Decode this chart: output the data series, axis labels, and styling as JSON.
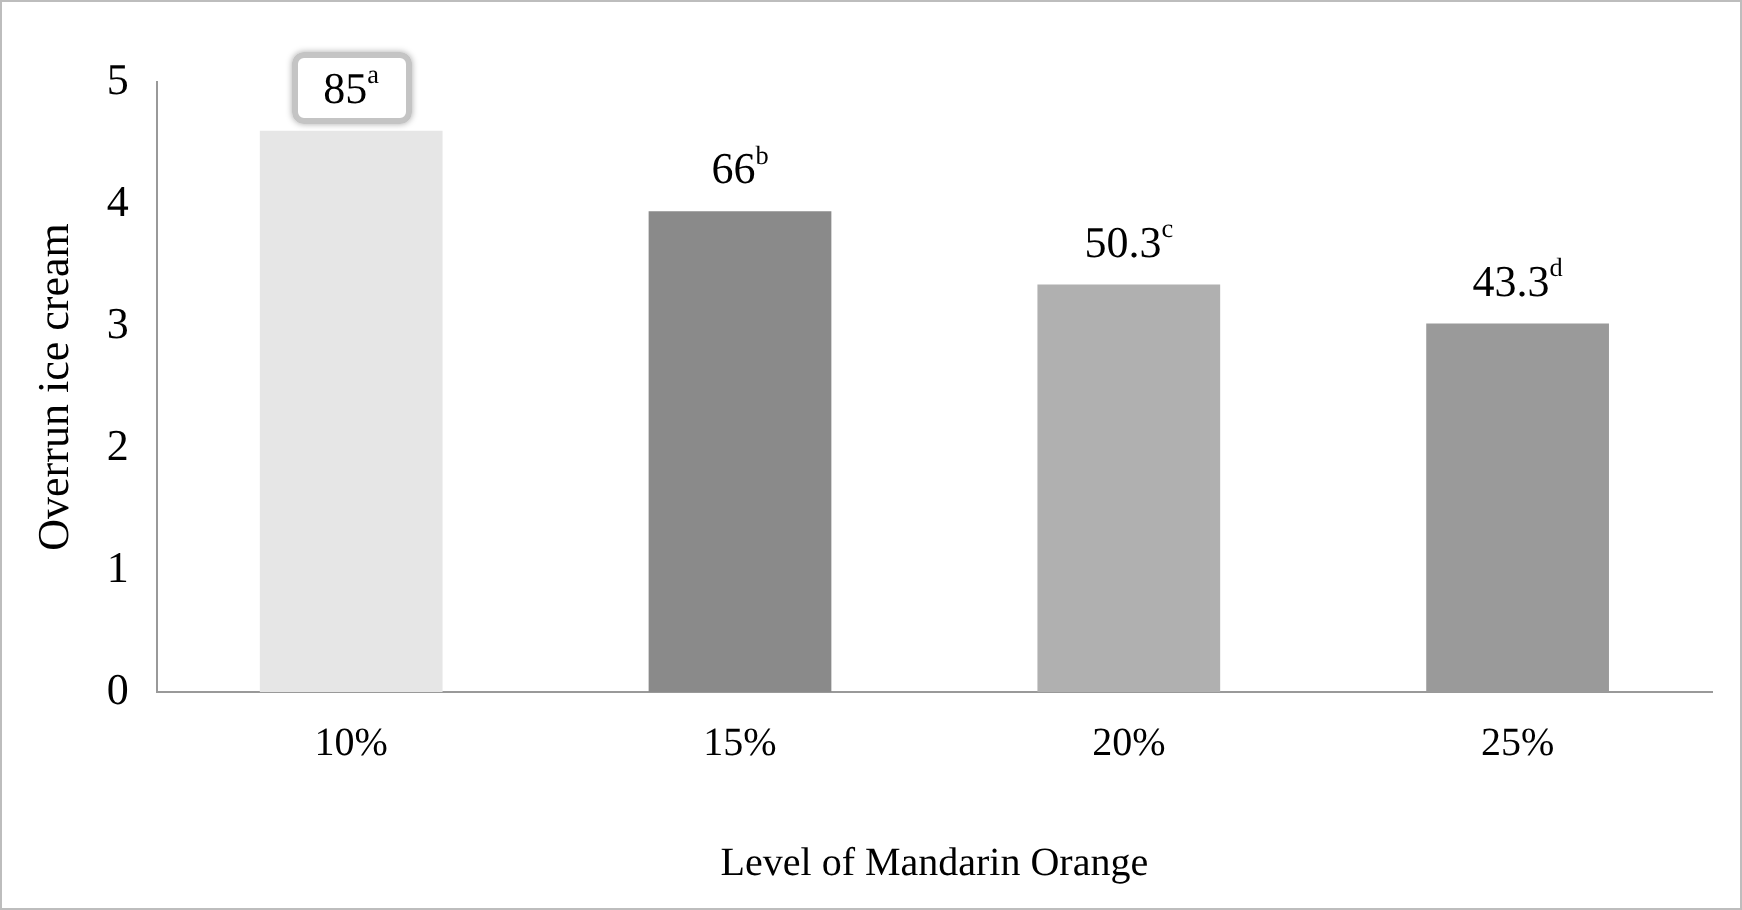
{
  "chart_data": {
    "type": "bar",
    "xlabel": "Level of Mandarin Orange",
    "ylabel": "Overrun ice cream",
    "categories": [
      "10%",
      "15%",
      "20%",
      "25%"
    ],
    "values": [
      4.6,
      3.94,
      3.34,
      3.02
    ],
    "colors": [
      "#e6e6e6",
      "#8a8a8a",
      "#b0b0b0",
      "#9a9a9a"
    ],
    "annotations": [
      {
        "text": "85$^{a}$",
        "x": "10%",
        "y": 4.6
      },
      {
        "text": "66$^{b}$",
        "x": "15%",
        "y": 3.94
      },
      {
        "text": "50.3$^{c}$",
        "x": "20%",
        "y": 3.34
      },
      {
        "text": "43.3$^{d}$",
        "x": "25%",
        "y": 3.02
      }
    ],
    "ylim": [
      0,
      5
    ],
    "yticks": [
      0,
      1,
      2,
      3,
      4,
      5
    ],
    "grid": false,
    "legend": false
  }
}
